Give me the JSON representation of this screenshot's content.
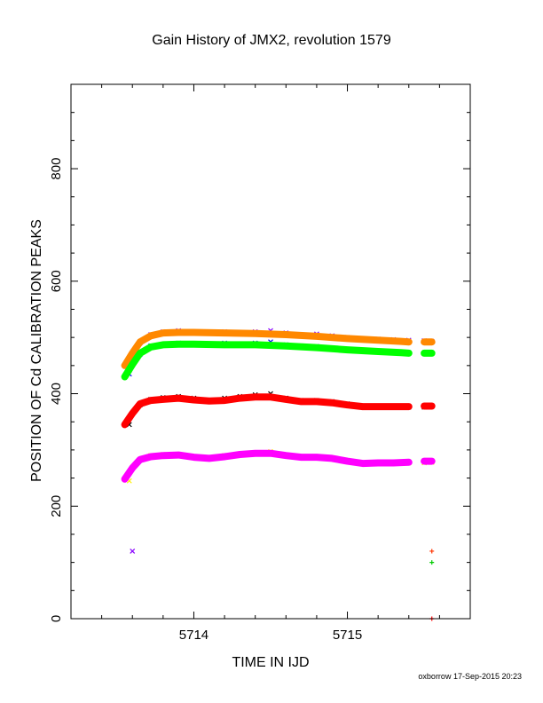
{
  "chart_data": {
    "type": "scatter",
    "title": "Gain History of JMX2, revolution 1579",
    "xlabel": "TIME IN IJD",
    "ylabel": "POSITION OF Cd CALIBRATION PEAKS",
    "xlim": [
      5713.2,
      5715.8
    ],
    "ylim": [
      0,
      950
    ],
    "x_ticks": [
      5714,
      5715
    ],
    "y_ticks": [
      0,
      200,
      400,
      600,
      800
    ],
    "grid": false,
    "legend": "none",
    "series": [
      {
        "color": "#8800ff",
        "marker": "x",
        "x": [
          5713.58,
          5713.65,
          5713.72,
          5713.8,
          5713.9,
          5714.0,
          5714.1,
          5714.2,
          5714.3,
          5714.4,
          5714.5,
          5714.6,
          5714.7,
          5714.8,
          5714.9,
          5715.0,
          5715.1,
          5715.2,
          5715.3,
          5715.4,
          5715.5,
          5715.55
        ],
        "y": [
          455,
          490,
          505,
          510,
          512,
          510,
          509,
          510,
          508,
          510,
          512,
          508,
          505,
          506,
          503,
          500,
          498,
          497,
          496,
          495,
          494,
          493
        ]
      },
      {
        "color": "#0000ff",
        "marker": "x",
        "x": [
          5713.58,
          5713.65,
          5713.72,
          5713.8,
          5713.9,
          5714.0,
          5714.1,
          5714.2,
          5714.3,
          5714.4,
          5714.5,
          5714.6,
          5714.7,
          5714.8,
          5714.9,
          5715.0,
          5715.1,
          5715.2,
          5715.3,
          5715.4,
          5715.5,
          5715.55
        ],
        "y": [
          435,
          470,
          485,
          488,
          490,
          488,
          487,
          490,
          488,
          490,
          492,
          487,
          485,
          484,
          480,
          478,
          477,
          475,
          474,
          473,
          472,
          472
        ]
      },
      {
        "color": "#000000",
        "marker": "x",
        "x": [
          5713.58,
          5713.65,
          5713.72,
          5713.8,
          5713.9,
          5714.0,
          5714.1,
          5714.2,
          5714.3,
          5714.4,
          5714.5,
          5714.6,
          5714.7,
          5714.8,
          5714.9,
          5715.0,
          5715.1,
          5715.2,
          5715.3,
          5715.4,
          5715.5,
          5715.55
        ],
        "y": [
          345,
          380,
          390,
          393,
          395,
          392,
          388,
          392,
          395,
          398,
          400,
          392,
          388,
          388,
          386,
          382,
          378,
          378,
          377,
          376,
          376,
          378
        ]
      },
      {
        "color": "#ffee00",
        "marker": "x",
        "x": [
          5713.58,
          5713.65,
          5713.72,
          5713.8,
          5713.9,
          5714.0,
          5714.1,
          5714.2,
          5714.3,
          5714.4,
          5714.5,
          5714.6,
          5714.7,
          5714.8,
          5714.9,
          5715.0,
          5715.1,
          5715.2,
          5715.3,
          5715.4,
          5715.5,
          5715.55
        ],
        "y": [
          245,
          282,
          290,
          292,
          292,
          288,
          285,
          290,
          293,
          295,
          297,
          290,
          287,
          288,
          285,
          280,
          275,
          275,
          276,
          277,
          277,
          278
        ]
      },
      {
        "color": "#ff8800",
        "marker": "line",
        "x": [
          5713.55,
          5713.6,
          5713.65,
          5713.72,
          5713.8,
          5713.9,
          5714.0,
          5714.2,
          5714.4,
          5714.6,
          5714.8,
          5715.0,
          5715.2,
          5715.35,
          5715.4
        ],
        "y": [
          450,
          472,
          492,
          503,
          508,
          509,
          509,
          508,
          507,
          505,
          502,
          498,
          495,
          493,
          492
        ]
      },
      {
        "color": "#ff8800",
        "marker": "line",
        "x": [
          5715.5,
          5715.55
        ],
        "y": [
          492,
          492
        ]
      },
      {
        "color": "#00ff00",
        "marker": "line",
        "x": [
          5713.55,
          5713.6,
          5713.65,
          5713.72,
          5713.8,
          5713.9,
          5714.0,
          5714.2,
          5714.4,
          5714.6,
          5714.8,
          5715.0,
          5715.2,
          5715.35,
          5715.4
        ],
        "y": [
          430,
          452,
          472,
          483,
          487,
          488,
          488,
          487,
          487,
          485,
          482,
          478,
          475,
          473,
          472
        ]
      },
      {
        "color": "#00ff00",
        "marker": "line",
        "x": [
          5715.5,
          5715.55
        ],
        "y": [
          472,
          472
        ]
      },
      {
        "color": "#ff0000",
        "marker": "line",
        "x": [
          5713.55,
          5713.6,
          5713.65,
          5713.72,
          5713.8,
          5713.9,
          5714.0,
          5714.1,
          5714.2,
          5714.3,
          5714.4,
          5714.5,
          5714.6,
          5714.7,
          5714.8,
          5714.9,
          5715.0,
          5715.1,
          5715.2,
          5715.3,
          5715.4
        ],
        "y": [
          345,
          365,
          382,
          388,
          390,
          392,
          389,
          387,
          388,
          392,
          394,
          394,
          390,
          386,
          386,
          384,
          380,
          377,
          377,
          377,
          377
        ]
      },
      {
        "color": "#ff0000",
        "marker": "line",
        "x": [
          5715.5,
          5715.55
        ],
        "y": [
          378,
          378
        ]
      },
      {
        "color": "#ff00ff",
        "marker": "line",
        "x": [
          5713.55,
          5713.6,
          5713.65,
          5713.72,
          5713.8,
          5713.9,
          5714.0,
          5714.1,
          5714.2,
          5714.3,
          5714.4,
          5714.5,
          5714.6,
          5714.7,
          5714.8,
          5714.9,
          5715.0,
          5715.1,
          5715.2,
          5715.3,
          5715.4
        ],
        "y": [
          248,
          268,
          283,
          288,
          290,
          291,
          287,
          285,
          288,
          292,
          294,
          294,
          290,
          287,
          287,
          285,
          280,
          276,
          277,
          277,
          278
        ]
      },
      {
        "color": "#ff00ff",
        "marker": "line",
        "x": [
          5715.5,
          5715.55
        ],
        "y": [
          280,
          280
        ]
      },
      {
        "color": "#8800ff",
        "marker": "x",
        "x": [
          5713.6
        ],
        "y": [
          120
        ]
      },
      {
        "color": "#ff3300",
        "marker": "+",
        "x": [
          5715.55
        ],
        "y": [
          120
        ]
      },
      {
        "color": "#00cc00",
        "marker": "+",
        "x": [
          5715.55
        ],
        "y": [
          100
        ]
      },
      {
        "color": "#ff0000",
        "marker": "+",
        "x": [
          5715.55
        ],
        "y": [
          0
        ]
      }
    ],
    "credit": "oxborrow 17-Sep-2015 20:23"
  }
}
